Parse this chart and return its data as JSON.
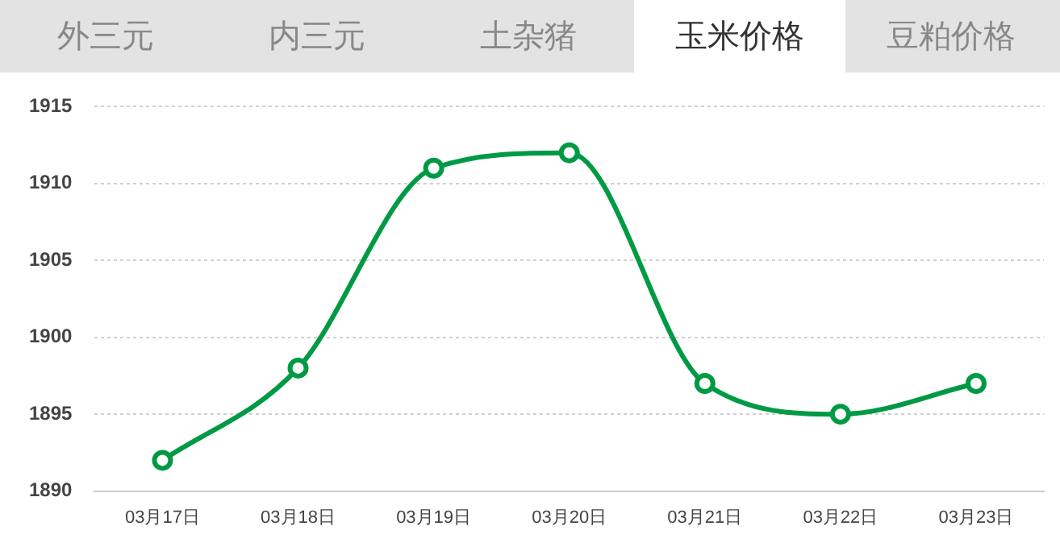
{
  "chart_data": {
    "type": "line",
    "annotations": [
      "外三元",
      "内三元",
      "土杂猪",
      "玉米价格",
      "豆粕价格"
    ],
    "categories": [
      "03月17日",
      "03月18日",
      "03月19日",
      "03月20日",
      "03月21日",
      "03月22日",
      "03月23日"
    ],
    "series": [
      {
        "color": "#009a44",
        "values": [
          1892,
          1898,
          1911,
          1912,
          1897,
          1895,
          1897
        ]
      }
    ],
    "ylim": [
      1890,
      1915
    ],
    "yticks": [
      1890,
      1895,
      1900,
      1905,
      1910,
      1915
    ],
    "grid": "y",
    "legend": false,
    "marker": "circle",
    "line_style": "solid"
  }
}
